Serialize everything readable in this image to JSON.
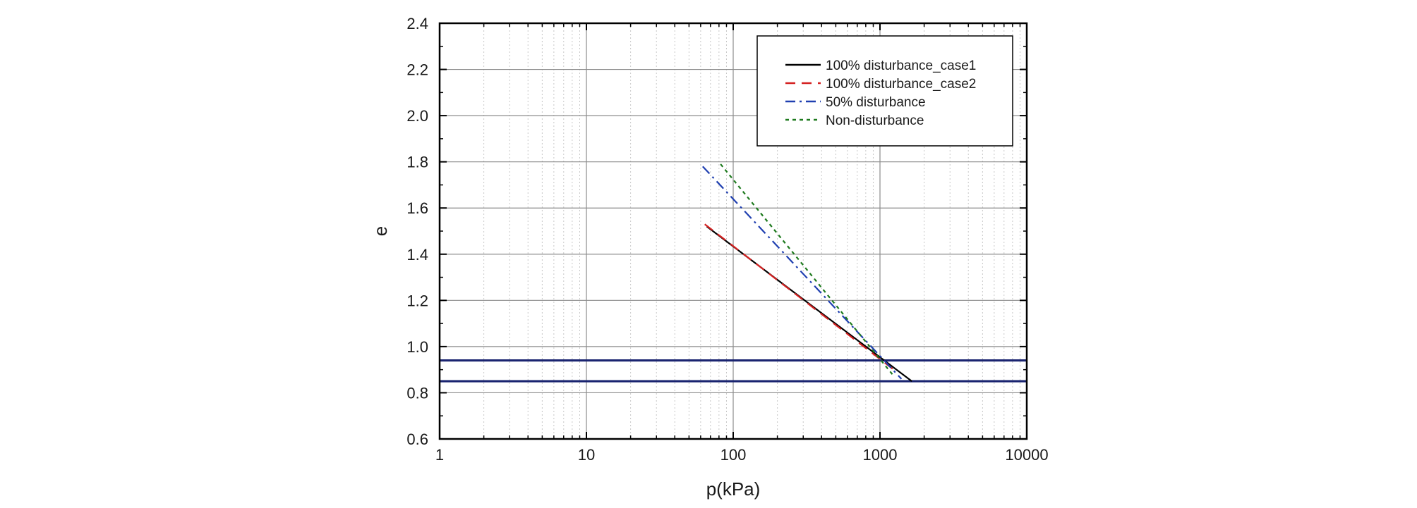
{
  "chart_data": {
    "type": "line",
    "xlabel": "p(kPa)",
    "ylabel": "e",
    "xscale": "log",
    "xlim": [
      1,
      10000
    ],
    "ylim": [
      0.6,
      2.4
    ],
    "x_ticks": [
      1,
      10,
      100,
      1000,
      10000
    ],
    "x_tick_labels": [
      "1",
      "10",
      "100",
      "1000",
      "10000"
    ],
    "y_ticks": [
      0.6,
      0.8,
      1.0,
      1.2,
      1.4,
      1.6,
      1.8,
      2.0,
      2.2,
      2.4
    ],
    "y_tick_labels": [
      "0.6",
      "0.8",
      "1.0",
      "1.2",
      "1.4",
      "1.6",
      "1.8",
      "2.0",
      "2.2",
      "2.4"
    ],
    "grid": true,
    "legend_position": "top-right",
    "series": [
      {
        "name": "100% disturbance_case1",
        "color": "#000000",
        "dash": "solid",
        "x": [
          66,
          1650
        ],
        "y": [
          1.52,
          0.85
        ]
      },
      {
        "name": "100% disturbance_case2",
        "color": "#d42020",
        "dash": "dashed",
        "x": [
          64,
          1300
        ],
        "y": [
          1.53,
          0.89
        ]
      },
      {
        "name": "50% disturbance",
        "color": "#1f3fb0",
        "dash": "dashdot",
        "x": [
          62,
          1400
        ],
        "y": [
          1.78,
          0.86
        ]
      },
      {
        "name": "Non-disturbance",
        "color": "#1e7a1e",
        "dash": "dotted",
        "x": [
          82,
          1250
        ],
        "y": [
          1.79,
          0.87
        ]
      }
    ],
    "reference_lines": [
      {
        "axis": "y",
        "value": 0.94,
        "color": "#1a2470"
      },
      {
        "axis": "y",
        "value": 0.85,
        "color": "#1a2470"
      }
    ]
  }
}
